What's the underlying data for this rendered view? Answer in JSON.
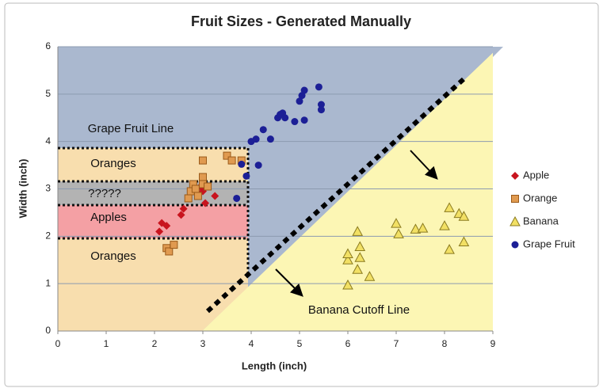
{
  "chart_data": {
    "type": "scatter",
    "title": "Fruit Sizes - Generated Manually",
    "x_label": "Length (inch)",
    "y_label": "Width (inch)",
    "xlim": [
      0,
      9
    ],
    "xticks": [
      0,
      1,
      2,
      3,
      4,
      5,
      6,
      7,
      8,
      9
    ],
    "ylim": [
      0,
      6
    ],
    "yticks": [
      0,
      1,
      2,
      3,
      4,
      5,
      6
    ],
    "grid": true,
    "legend": "right",
    "annotations": [
      "Grape Fruit Line",
      "Oranges",
      "?????",
      "Apples",
      "Oranges",
      "Banana Cutoff Line"
    ],
    "series": [
      {
        "name": "Apple",
        "color": "#c8141e",
        "marker": "diamond",
        "x": [
          2.1,
          2.15,
          2.25,
          2.55,
          2.6,
          2.9,
          3.0,
          3.05,
          3.25,
          2.95
        ],
        "values": [
          2.1,
          2.28,
          2.22,
          2.45,
          2.58,
          2.85,
          2.95,
          2.7,
          2.85,
          3.05
        ]
      },
      {
        "name": "Orange",
        "color": "#e09a50",
        "marker": "square",
        "x": [
          2.25,
          2.3,
          2.4,
          2.7,
          2.75,
          2.8,
          2.85,
          2.9,
          3.0,
          3.0,
          3.5,
          3.6,
          3.8,
          3.0,
          3.1
        ],
        "values": [
          1.75,
          1.68,
          1.82,
          2.8,
          2.95,
          3.1,
          3.0,
          2.85,
          3.25,
          3.6,
          3.7,
          3.6,
          3.6,
          3.1,
          3.05
        ]
      },
      {
        "name": "Banana",
        "color": "#f2e064",
        "marker": "triangle",
        "x": [
          6.0,
          6.0,
          6.0,
          6.2,
          6.25,
          6.25,
          6.2,
          6.45,
          7.0,
          7.05,
          7.4,
          7.55,
          8.0,
          8.1,
          8.1,
          8.3,
          8.4,
          8.4
        ],
        "values": [
          0.97,
          1.5,
          1.63,
          1.3,
          1.55,
          1.78,
          2.1,
          1.15,
          2.27,
          2.05,
          2.15,
          2.17,
          2.22,
          2.6,
          1.72,
          2.48,
          2.42,
          1.88
        ]
      },
      {
        "name": "Grape Fruit",
        "color": "#1c1f96",
        "marker": "circle",
        "x": [
          3.7,
          3.8,
          3.9,
          4.0,
          4.1,
          4.15,
          4.25,
          4.4,
          4.55,
          4.6,
          4.65,
          4.7,
          4.9,
          5.0,
          5.05,
          5.1,
          5.1,
          5.4,
          5.45,
          5.45
        ],
        "values": [
          2.8,
          3.52,
          3.27,
          4.0,
          4.05,
          3.5,
          4.25,
          4.05,
          4.5,
          4.57,
          4.6,
          4.5,
          4.42,
          4.85,
          4.97,
          5.08,
          4.45,
          5.15,
          4.78,
          4.67
        ]
      }
    ]
  }
}
